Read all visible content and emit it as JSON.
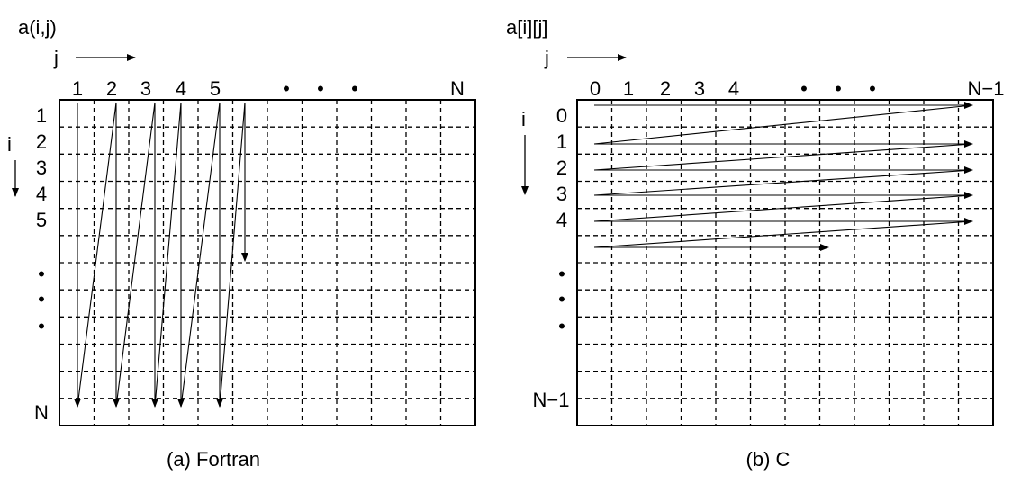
{
  "left": {
    "array_label": "a(i,j)",
    "col_axis_label": "j",
    "row_axis_label": "i",
    "col_labels": [
      "1",
      "2",
      "3",
      "4",
      "5",
      "•",
      "•",
      "•",
      "N"
    ],
    "row_labels": [
      "1",
      "2",
      "3",
      "4",
      "5",
      "•",
      "•",
      "•",
      "N"
    ],
    "caption": "(a)  Fortran"
  },
  "right": {
    "array_label": "a[i][j]",
    "col_axis_label": "j",
    "row_axis_label": "i",
    "col_labels": [
      "0",
      "1",
      "2",
      "3",
      "4",
      "•",
      "•",
      "•",
      "N−1"
    ],
    "row_labels": [
      "0",
      "1",
      "2",
      "3",
      "4",
      "•",
      "•",
      "•",
      "N−1"
    ],
    "caption": "(b)  C"
  }
}
